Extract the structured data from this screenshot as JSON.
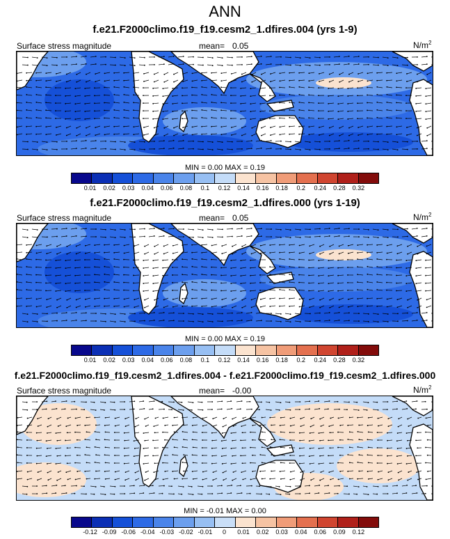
{
  "title": "ANN",
  "panels": [
    {
      "title": "f.e21.F2000climo.f19_f19.cesm2_1.dfires.004 (yrs 1-9)",
      "left_label": "Surface stress magnitude",
      "mean_label": "mean=",
      "mean_value": "0.05",
      "units": "N/m",
      "units_sup": "2",
      "min_label": "MIN =",
      "min_value": "0.00",
      "max_label": "MAX =",
      "max_value": "0.19",
      "colorbar_ticks": [
        "0.01",
        "0.02",
        "0.03",
        "0.04",
        "0.06",
        "0.08",
        "0.1",
        "0.12",
        "0.14",
        "0.16",
        "0.18",
        "0.2",
        "0.24",
        "0.28",
        "0.32"
      ]
    },
    {
      "title": "f.e21.F2000climo.f19_f19.cesm2_1.dfires.000 (yrs 1-19)",
      "left_label": "Surface stress magnitude",
      "mean_label": "mean=",
      "mean_value": "0.05",
      "units": "N/m",
      "units_sup": "2",
      "min_label": "MIN =",
      "min_value": "0.00",
      "max_label": "MAX =",
      "max_value": "0.19",
      "colorbar_ticks": [
        "0.01",
        "0.02",
        "0.03",
        "0.04",
        "0.06",
        "0.08",
        "0.1",
        "0.12",
        "0.14",
        "0.16",
        "0.18",
        "0.2",
        "0.24",
        "0.28",
        "0.32"
      ]
    },
    {
      "title": "f.e21.F2000climo.f19_f19.cesm2_1.dfires.004 - f.e21.F2000climo.f19_f19.cesm2_1.dfires.000",
      "left_label": "Surface stress magnitude",
      "mean_label": "mean=",
      "mean_value": "-0.00",
      "units": "N/m",
      "units_sup": "2",
      "min_label": "MIN =",
      "min_value": "-0.01",
      "max_label": "MAX =",
      "max_value": "0.00",
      "colorbar_ticks": [
        "-0.12",
        "-0.09",
        "-0.06",
        "-0.04",
        "-0.03",
        "-0.02",
        "-0.01",
        "0",
        "0.01",
        "0.02",
        "0.03",
        "0.04",
        "0.06",
        "0.09",
        "0.12"
      ]
    }
  ],
  "colors": {
    "abs_palette": [
      "#08088c",
      "#0b2fb5",
      "#1550d8",
      "#2d6ae6",
      "#4a84ea",
      "#6c9fee",
      "#97bff3",
      "#c4dcf8",
      "#fbe3cf",
      "#f6c3a3",
      "#f09c78",
      "#e4704f",
      "#d04530",
      "#b0201a",
      "#830c0b"
    ],
    "diff_palette": [
      "#08088c",
      "#0b2fb5",
      "#1550d8",
      "#2d6ae6",
      "#4a84ea",
      "#6c9fee",
      "#97bff3",
      "#c9def7",
      "#fbe3cf",
      "#f6c3a3",
      "#f09c78",
      "#e4704f",
      "#d04530",
      "#b0201a",
      "#830c0b"
    ],
    "land": "#ffffff"
  }
}
